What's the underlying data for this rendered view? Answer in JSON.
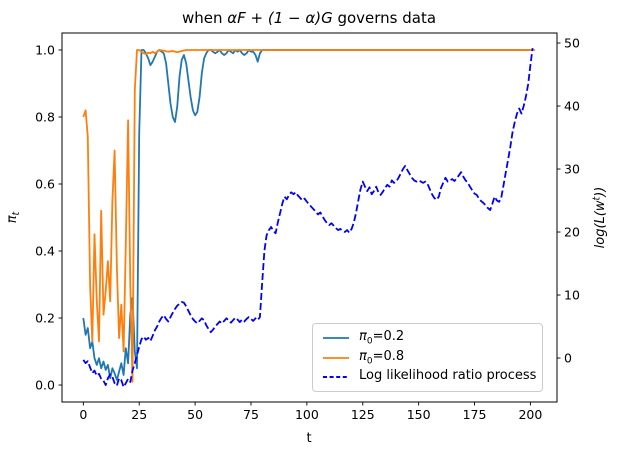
{
  "figure": {
    "title_parts": {
      "prefix": "when ",
      "math": "αF + (1 − α)G",
      "suffix": " governs data"
    },
    "xlabel": "t",
    "ylabel_left": {
      "symbol": "π",
      "subscript": "t"
    },
    "ylabel_right": {
      "prefix": "log(L(w",
      "superscript": "t",
      "suffix": "))"
    }
  },
  "legend": {
    "entries": [
      {
        "symbol": "π",
        "sub": "0",
        "rest": "=0.2",
        "color": "#1f77b4",
        "dash": false
      },
      {
        "symbol": "π",
        "sub": "0",
        "rest": "=0.8",
        "color": "#ff7f0e",
        "dash": false
      },
      {
        "symbol": "",
        "sub": "",
        "rest": "Log likelihood ratio process",
        "color": "#0000ff",
        "dash": true
      }
    ]
  },
  "chart_data": {
    "type": "line",
    "title": "when αF + (1 − α)G governs data",
    "xlabel": "t",
    "ylabel_left": "π_t",
    "ylabel_right": "log(L(w^t))",
    "grid": false,
    "legend_position": "lower-right-inside",
    "xlim": [
      -9.55,
      211.9
    ],
    "ylim_left": [
      -0.0507,
      1.0507
    ],
    "ylim_right": [
      -6.98,
      51.59
    ],
    "xticks": [
      0,
      25,
      50,
      75,
      100,
      125,
      150,
      175,
      200
    ],
    "yticks_left": [
      "0.0",
      "0.2",
      "0.4",
      "0.6",
      "0.8",
      "1.0"
    ],
    "yticks_right": [
      0,
      10,
      20,
      30,
      40,
      50
    ],
    "series": [
      {
        "name": "π0=0.2",
        "axis": "left",
        "color": "#1f77b4",
        "dash": false,
        "t0": 0,
        "dt": 1,
        "values": [
          0.2,
          0.15,
          0.17,
          0.11,
          0.13,
          0.08,
          0.06,
          0.08,
          0.05,
          0.07,
          0.045,
          0.06,
          0.02,
          0.05,
          0.035,
          0.015,
          0.04,
          0.065,
          0.03,
          0.11,
          0.065,
          0.21,
          0.26,
          0.1,
          0.05,
          0.75,
          1.0,
          1.0,
          0.99,
          0.975,
          0.955,
          0.965,
          0.98,
          0.995,
          1.0,
          0.995,
          0.99,
          0.96,
          0.9,
          0.84,
          0.8,
          0.785,
          0.83,
          0.92,
          0.97,
          0.985,
          0.96,
          0.91,
          0.86,
          0.82,
          0.805,
          0.815,
          0.86,
          0.93,
          0.975,
          0.99,
          1.0,
          1.0,
          0.995,
          0.99,
          0.995,
          1.0,
          0.99,
          0.985,
          0.99,
          1.0,
          0.995,
          0.99,
          1.0,
          0.995,
          1.0,
          0.99,
          0.985,
          0.99,
          1.0,
          0.995,
          0.995,
          0.985,
          0.965,
          0.99,
          1.0
        ],
        "extra": [
          [
            200,
            1.0
          ]
        ]
      },
      {
        "name": "π0=0.8",
        "axis": "left",
        "color": "#ff7f0e",
        "dash": false,
        "t0": 0,
        "dt": 1,
        "values": [
          0.8,
          0.82,
          0.74,
          0.3,
          0.13,
          0.45,
          0.25,
          0.13,
          0.52,
          0.21,
          0.28,
          0.37,
          0.25,
          0.55,
          0.7,
          0.35,
          0.14,
          0.24,
          0.1,
          0.42,
          0.79,
          0.3,
          0.01,
          0.88,
          1.0,
          1.0,
          0.995,
          0.99,
          0.988,
          0.992,
          0.99,
          0.995,
          0.99,
          0.995,
          1.0
        ],
        "extra": [
          [
            36,
            0.998
          ],
          [
            38,
            0.995
          ],
          [
            40,
            0.997
          ],
          [
            42,
            0.993
          ],
          [
            44,
            0.997
          ],
          [
            46,
            1.0
          ],
          [
            202,
            1.0
          ]
        ]
      },
      {
        "name": "Log likelihood ratio process",
        "axis": "right",
        "color": "#0000ff",
        "dash": true,
        "t0": 0,
        "dt": 1,
        "values": [
          -0.3,
          -0.8,
          -0.5,
          -1.5,
          -2.4,
          -2.0,
          -2.8,
          -2.5,
          -3.3,
          -3.6,
          -4.3,
          -3.2,
          -2.6,
          -3.0,
          -4.0,
          -4.4,
          -3.2,
          -3.5,
          -4.6,
          -4.0,
          -3.3,
          -3.8,
          -2.0,
          -0.8,
          0.5,
          1.8,
          3.0,
          3.4,
          2.9,
          3.2,
          2.7,
          3.5,
          4.4,
          5.0,
          5.8,
          6.4,
          6.8,
          6.2,
          5.8,
          6.5,
          7.2,
          7.8,
          8.3,
          8.6,
          8.9,
          8.8,
          8.2,
          7.5,
          6.8,
          6.2,
          5.8,
          5.5,
          5.9,
          6.3,
          6.0,
          5.2,
          4.6,
          4.1,
          4.5,
          5.0,
          5.4,
          5.8,
          5.5,
          5.9,
          6.3,
          6.0,
          5.6,
          6.0,
          6.4,
          6.1,
          5.7,
          6.1,
          5.8,
          6.2,
          6.5,
          6.2,
          5.9,
          6.3,
          6.0,
          6.5,
          12.0,
          17.0,
          19.5,
          20.3,
          20.8,
          20.2,
          19.8,
          21.5,
          23.0,
          24.5,
          25.6,
          25.2,
          25.9,
          26.3,
          26.0,
          26.3,
          25.8,
          25.4,
          25.0,
          25.3,
          24.8,
          24.4,
          24.0,
          23.6,
          23.2,
          22.8,
          23.1,
          22.5,
          21.9,
          21.4,
          21.1,
          21.4,
          21.0,
          20.6,
          20.3,
          20.5,
          20.2,
          20.0,
          20.3,
          19.9,
          20.5,
          21.5,
          23.0,
          25.0,
          26.8,
          28.0,
          27.2,
          26.5,
          27.1,
          26.0,
          26.5,
          27.2,
          26.3,
          25.9,
          26.4,
          27.0,
          27.5,
          27.2,
          28.2,
          27.8,
          28.0,
          28.6,
          29.3,
          30.0,
          30.5,
          29.8,
          29.2,
          28.6,
          28.2,
          28.0,
          28.2,
          28.0,
          27.8,
          28.0,
          27.6,
          26.8,
          26.0,
          25.4,
          25.1,
          25.6,
          27.0,
          27.8,
          28.6,
          28.0,
          28.2,
          28.4,
          28.1,
          28.5,
          29.0,
          29.5,
          28.8,
          28.2,
          27.8,
          27.2,
          26.6,
          26.1,
          25.9,
          25.3,
          24.9,
          24.6,
          24.2,
          23.8,
          23.5,
          24.5,
          25.6,
          25.0,
          24.8,
          25.5,
          27.5,
          29.5,
          31.4,
          33.5,
          35.8,
          37.5,
          38.8,
          39.6,
          38.8,
          40.0,
          41.5,
          43.5,
          46.5,
          49.2
        ],
        "extra": []
      }
    ]
  }
}
